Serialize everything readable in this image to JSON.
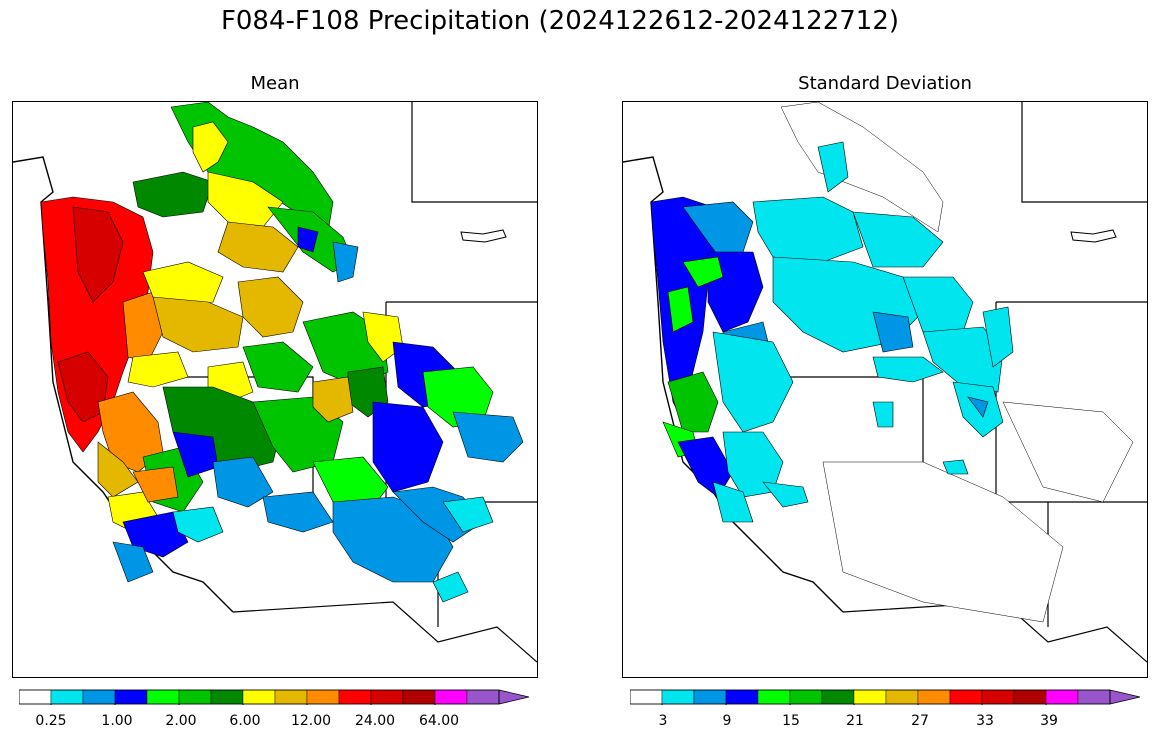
{
  "figure": {
    "title": "F084-F108 Precipitation (2024122612-2024122712)"
  },
  "panels": {
    "mean": {
      "title": "Mean",
      "colorbar_labels": [
        "0.25",
        "1.00",
        "2.00",
        "6.00",
        "12.00",
        "24.00",
        "64.00"
      ]
    },
    "std": {
      "title": "Standard Deviation",
      "colorbar_labels": [
        "3",
        "9",
        "15",
        "21",
        "27",
        "33",
        "39"
      ]
    }
  },
  "colorbar": {
    "colors": [
      "#ffffff",
      "#00e5ee",
      "#0096e6",
      "#0000ff",
      "#00ff00",
      "#00c400",
      "#008800",
      "#ffff00",
      "#e5b800",
      "#ff8c00",
      "#ff0000",
      "#d60000",
      "#b00000",
      "#ff00ff",
      "#9955cc"
    ],
    "extend": "max"
  },
  "map_style": {
    "basin_outline": "#000000",
    "region": "Western United States river basins"
  }
}
